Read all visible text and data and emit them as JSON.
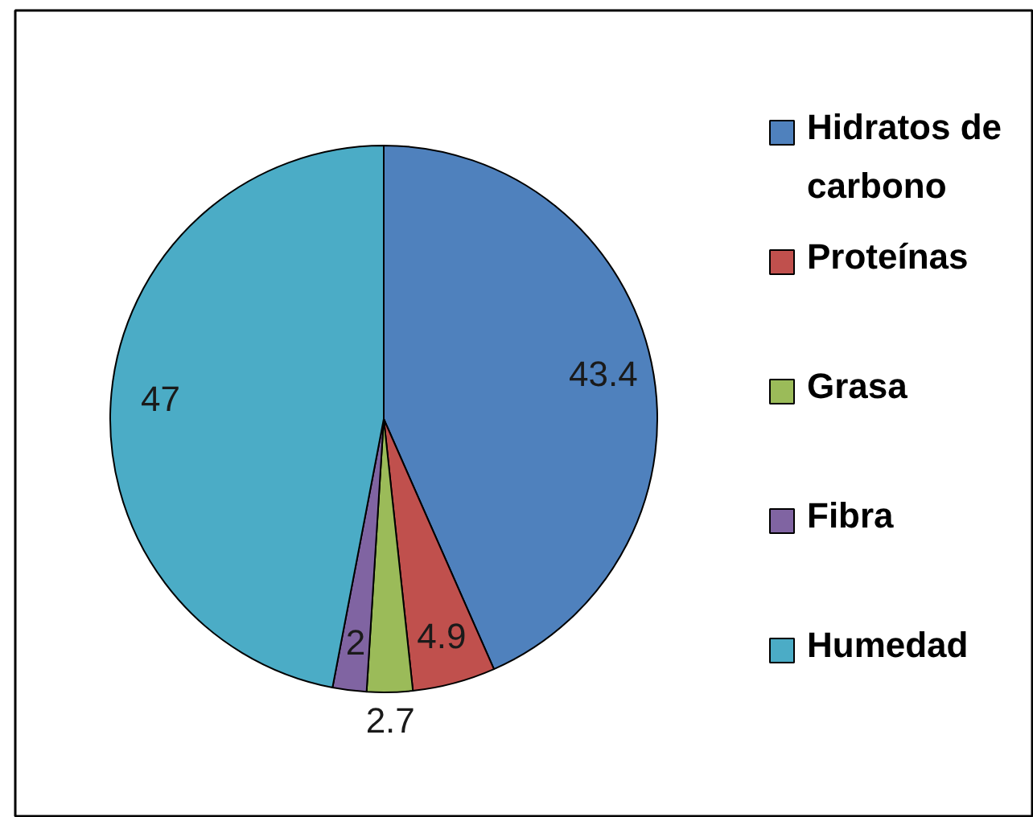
{
  "chart_data": {
    "type": "pie",
    "categories": [
      "Hidratos de carbono",
      "Proteínas",
      "Grasa",
      "Fibra",
      "Humedad"
    ],
    "values": [
      43.4,
      4.9,
      2.7,
      2,
      47
    ],
    "colors": [
      "#4f81bd",
      "#c0504d",
      "#9bbb59",
      "#8064a2",
      "#4bacc6"
    ],
    "data_labels": true,
    "legend": "right"
  }
}
